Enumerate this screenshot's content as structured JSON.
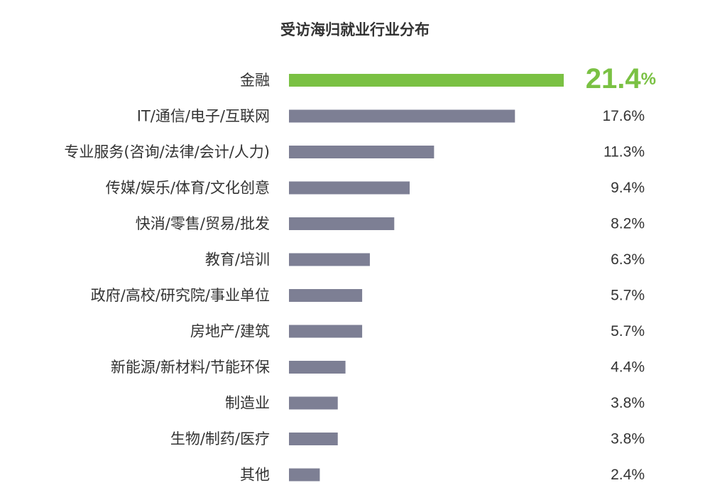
{
  "chart_data": {
    "type": "bar",
    "orientation": "horizontal",
    "title": "受访海归就业行业分布",
    "xlabel": "",
    "ylabel": "",
    "categories": [
      "金融",
      "IT/通信/电子/互联网",
      "专业服务(咨询/法律/会计/人力)",
      "传媒/娱乐/体育/文化创意",
      "快消/零售/贸易/批发",
      "教育/培训",
      "政府/高校/研究院/事业单位",
      "房地产/建筑",
      "新能源/新材料/节能环保",
      "制造业",
      "生物/制药/医疗",
      "其他"
    ],
    "values": [
      21.4,
      17.6,
      11.3,
      9.4,
      8.2,
      6.3,
      5.7,
      5.7,
      4.4,
      3.8,
      3.8,
      2.4
    ],
    "value_labels": [
      "21.4%",
      "17.6%",
      "11.3%",
      "9.4%",
      "8.2%",
      "6.3%",
      "5.7%",
      "5.7%",
      "4.4%",
      "3.8%",
      "3.8%",
      "2.4%"
    ],
    "xlim": [
      0,
      21.4
    ],
    "grid": false,
    "legend": "none",
    "colors": {
      "highlight": "#7ac143",
      "bar": "#7d7f94",
      "text": "#333333"
    },
    "highlight_index": 0
  }
}
